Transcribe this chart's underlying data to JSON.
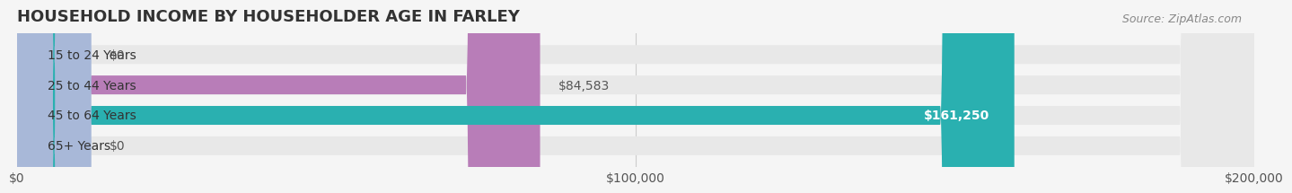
{
  "title": "HOUSEHOLD INCOME BY HOUSEHOLDER AGE IN FARLEY",
  "source": "Source: ZipAtlas.com",
  "categories": [
    "15 to 24 Years",
    "25 to 44 Years",
    "45 to 64 Years",
    "65+ Years"
  ],
  "values": [
    0,
    84583,
    161250,
    0
  ],
  "bar_colors": [
    "#a8b8d8",
    "#b87db8",
    "#2ab0b0",
    "#a8b8d8"
  ],
  "label_colors": [
    "#555555",
    "#555555",
    "#ffffff",
    "#555555"
  ],
  "xlim": [
    0,
    200000
  ],
  "xticks": [
    0,
    100000,
    200000
  ],
  "xtick_labels": [
    "$0",
    "$100,000",
    "$200,000"
  ],
  "background_color": "#f5f5f5",
  "bar_bg_color": "#e8e8e8",
  "title_fontsize": 13,
  "tick_fontsize": 10,
  "label_fontsize": 10,
  "source_fontsize": 9
}
